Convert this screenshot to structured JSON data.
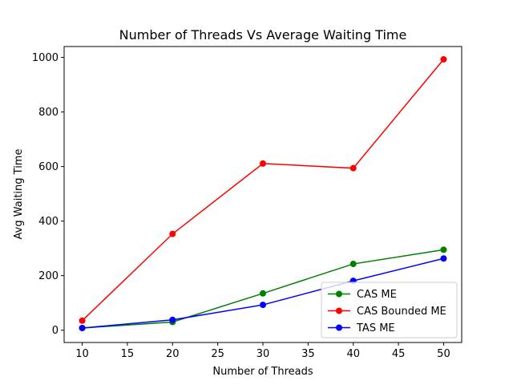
{
  "chart_data": {
    "type": "line",
    "title": "Number of Threads Vs Average Waiting Time",
    "xlabel": "Number of Threads",
    "ylabel": "Avg Waiting Time",
    "x": [
      10,
      20,
      30,
      40,
      50
    ],
    "xlim": [
      8,
      52
    ],
    "ylim": [
      -45,
      1040
    ],
    "xticks": [
      10,
      15,
      20,
      25,
      30,
      35,
      40,
      45,
      50
    ],
    "yticks": [
      0,
      200,
      400,
      600,
      800,
      1000
    ],
    "grid": false,
    "legend_position": "lower-right",
    "series": [
      {
        "name": "CAS ME",
        "color": "#008000",
        "values": [
          8,
          30,
          135,
          243,
          295
        ]
      },
      {
        "name": "CAS Bounded ME",
        "color": "#ff0000",
        "values": [
          35,
          353,
          611,
          594,
          993
        ]
      },
      {
        "name": "TAS ME",
        "color": "#0000ff",
        "values": [
          8,
          38,
          93,
          181,
          263
        ]
      }
    ]
  }
}
